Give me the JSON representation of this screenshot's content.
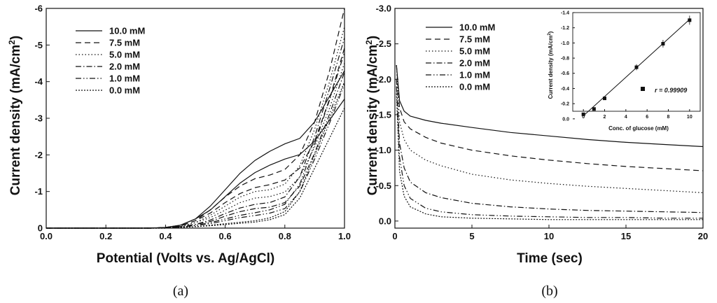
{
  "panel_labels": [
    "(a)",
    "(b)"
  ],
  "chart_data": [
    {
      "type": "line",
      "xlabel": "Potential (Volts vs. Ag/AgCl)",
      "ylabel": "Current density (mA/cm",
      "ylabel_sup": "2",
      "ylabel_close": ")",
      "xlim": [
        0.0,
        1.0
      ],
      "ylim": [
        0,
        -6
      ],
      "xticks": [
        "0.0",
        "0.2",
        "0.4",
        "0.6",
        "0.8",
        "1.0"
      ],
      "yticks": [
        "0",
        "-1",
        "-2",
        "-3",
        "-4",
        "-5",
        "-6"
      ],
      "grid": false,
      "legend": "top-left",
      "series": [
        {
          "name": "10.0 mM",
          "dash": "solid",
          "x": [
            0.0,
            0.2,
            0.35,
            0.4,
            0.45,
            0.5,
            0.55,
            0.6,
            0.65,
            0.7,
            0.75,
            0.8,
            0.85,
            0.9,
            0.95,
            1.0
          ],
          "y": [
            0.0,
            0.0,
            0.0,
            -0.02,
            -0.08,
            -0.25,
            -0.6,
            -1.05,
            -1.5,
            -1.85,
            -2.1,
            -2.3,
            -2.45,
            -2.9,
            -3.6,
            -4.3
          ]
        },
        {
          "name": "7.5 mM",
          "dash": "dashed",
          "x": [
            0.0,
            0.2,
            0.35,
            0.4,
            0.45,
            0.5,
            0.55,
            0.6,
            0.65,
            0.7,
            0.75,
            0.8,
            0.85,
            0.9,
            0.95,
            1.0
          ],
          "y": [
            0.0,
            0.0,
            0.0,
            -0.02,
            -0.06,
            -0.2,
            -0.5,
            -0.85,
            -1.15,
            -1.35,
            -1.45,
            -1.6,
            -2.0,
            -2.9,
            -4.3,
            -6.0
          ]
        },
        {
          "name": "5.0 mM",
          "dash": "dotted",
          "x": [
            0.0,
            0.2,
            0.35,
            0.4,
            0.45,
            0.5,
            0.55,
            0.6,
            0.65,
            0.7,
            0.75,
            0.8,
            0.85,
            0.9,
            0.95,
            1.0
          ],
          "y": [
            0.0,
            0.0,
            0.0,
            -0.01,
            -0.05,
            -0.15,
            -0.35,
            -0.6,
            -0.85,
            -1.0,
            -1.05,
            -1.2,
            -1.7,
            -2.7,
            -4.0,
            -5.5
          ]
        },
        {
          "name": "2.0 mM",
          "dash": "dashdot",
          "x": [
            0.0,
            0.2,
            0.35,
            0.4,
            0.45,
            0.5,
            0.55,
            0.6,
            0.65,
            0.7,
            0.75,
            0.8,
            0.85,
            0.9,
            0.95,
            1.0
          ],
          "y": [
            0.0,
            0.0,
            0.0,
            -0.01,
            -0.04,
            -0.1,
            -0.22,
            -0.4,
            -0.55,
            -0.65,
            -0.7,
            -0.85,
            -1.4,
            -2.5,
            -3.8,
            -5.2
          ]
        },
        {
          "name": "1.0 mM",
          "dash": "dashdotdot",
          "x": [
            0.0,
            0.2,
            0.35,
            0.4,
            0.45,
            0.5,
            0.55,
            0.6,
            0.65,
            0.7,
            0.75,
            0.8,
            0.85,
            0.9,
            0.95,
            1.0
          ],
          "y": [
            0.0,
            0.0,
            0.0,
            -0.01,
            -0.03,
            -0.07,
            -0.15,
            -0.25,
            -0.35,
            -0.42,
            -0.5,
            -0.65,
            -1.2,
            -2.3,
            -3.5,
            -4.8
          ]
        },
        {
          "name": "0.0 mM",
          "dash": "shortdot",
          "x": [
            0.0,
            0.2,
            0.35,
            0.4,
            0.45,
            0.5,
            0.55,
            0.6,
            0.65,
            0.7,
            0.75,
            0.8,
            0.85,
            0.9,
            0.95,
            1.0
          ],
          "y": [
            0.0,
            0.0,
            0.0,
            0.0,
            -0.02,
            -0.04,
            -0.08,
            -0.12,
            -0.16,
            -0.2,
            -0.28,
            -0.45,
            -1.0,
            -2.0,
            -3.0,
            -4.0
          ]
        }
      ]
    },
    {
      "type": "line",
      "xlabel": "Time (sec)",
      "ylabel": "Current density (mA/cm",
      "ylabel_sup": "2",
      "ylabel_close": ")",
      "xlim": [
        0,
        20
      ],
      "ylim": [
        0.1,
        -3.0
      ],
      "xticks": [
        "0",
        "5",
        "10",
        "15",
        "20"
      ],
      "yticks": [
        "0.0",
        "-0.5",
        "-1.0",
        "-1.5",
        "-2.0",
        "-2.5",
        "-3.0"
      ],
      "grid": false,
      "legend": "top-left",
      "series": [
        {
          "name": "10.0 mM",
          "dash": "solid",
          "x": [
            0.1,
            0.3,
            0.6,
            1,
            2,
            3,
            5,
            7.5,
            10,
            12.5,
            15,
            17.5,
            20
          ],
          "y": [
            -2.2,
            -1.7,
            -1.55,
            -1.48,
            -1.42,
            -1.38,
            -1.32,
            -1.25,
            -1.2,
            -1.15,
            -1.11,
            -1.08,
            -1.05
          ]
        },
        {
          "name": "7.5 mM",
          "dash": "dashed",
          "x": [
            0.1,
            0.3,
            0.6,
            1,
            2,
            3,
            5,
            7.5,
            10,
            12.5,
            15,
            17.5,
            20
          ],
          "y": [
            -2.2,
            -1.6,
            -1.4,
            -1.3,
            -1.18,
            -1.1,
            -1.0,
            -0.92,
            -0.86,
            -0.81,
            -0.77,
            -0.74,
            -0.71
          ]
        },
        {
          "name": "5.0 mM",
          "dash": "dotted",
          "x": [
            0.1,
            0.3,
            0.6,
            1,
            2,
            3,
            5,
            7.5,
            10,
            12.5,
            15,
            17.5,
            20
          ],
          "y": [
            -2.2,
            -1.4,
            -1.15,
            -1.0,
            -0.86,
            -0.78,
            -0.66,
            -0.58,
            -0.53,
            -0.49,
            -0.46,
            -0.43,
            -0.4
          ]
        },
        {
          "name": "2.0 mM",
          "dash": "dashdot",
          "x": [
            0.1,
            0.3,
            0.6,
            1,
            2,
            3,
            5,
            7.5,
            10,
            12.5,
            15,
            17.5,
            20
          ],
          "y": [
            -2.0,
            -1.1,
            -0.75,
            -0.55,
            -0.4,
            -0.33,
            -0.25,
            -0.2,
            -0.17,
            -0.15,
            -0.14,
            -0.13,
            -0.12
          ]
        },
        {
          "name": "1.0 mM",
          "dash": "dashdotdot",
          "x": [
            0.1,
            0.3,
            0.6,
            1,
            2,
            3,
            5,
            7.5,
            10,
            12.5,
            15,
            17.5,
            20
          ],
          "y": [
            -1.9,
            -0.9,
            -0.5,
            -0.32,
            -0.18,
            -0.13,
            -0.09,
            -0.07,
            -0.06,
            -0.05,
            -0.05,
            -0.04,
            -0.04
          ]
        },
        {
          "name": "0.0 mM",
          "dash": "shortdot",
          "x": [
            0.1,
            0.3,
            0.6,
            1,
            2,
            3,
            5,
            7.5,
            10,
            12.5,
            15,
            17.5,
            20
          ],
          "y": [
            -1.8,
            -0.7,
            -0.35,
            -0.2,
            -0.1,
            -0.06,
            -0.04,
            -0.03,
            -0.02,
            -0.02,
            -0.02,
            -0.02,
            -0.02
          ]
        }
      ]
    },
    {
      "type": "scatter",
      "placement": "inset-top-right",
      "xlabel": "Conc. of glucose (mM)",
      "ylabel": "Current density (mA/cm",
      "ylabel_sup": "2",
      "ylabel_close": ")",
      "xlim": [
        -1,
        11
      ],
      "ylim": [
        -0.1,
        -1.4
      ],
      "xticks": [
        "0",
        "2",
        "4",
        "6",
        "8",
        "10"
      ],
      "yticks": [
        "0.0",
        "-0.2",
        "-0.4",
        "-0.6",
        "-0.8",
        "-1.0",
        "-1.2",
        "-1.4"
      ],
      "annotation": "r = 0.99909",
      "points": {
        "x": [
          0,
          1,
          2,
          5,
          7.5,
          10
        ],
        "y": [
          -0.06,
          -0.13,
          -0.27,
          -0.68,
          -0.99,
          -1.3
        ],
        "err": [
          0.01,
          0.01,
          0.02,
          0.04,
          0.05,
          0.06
        ]
      },
      "fit": {
        "x": [
          0,
          10
        ],
        "y": [
          -0.04,
          -1.31
        ]
      }
    }
  ]
}
